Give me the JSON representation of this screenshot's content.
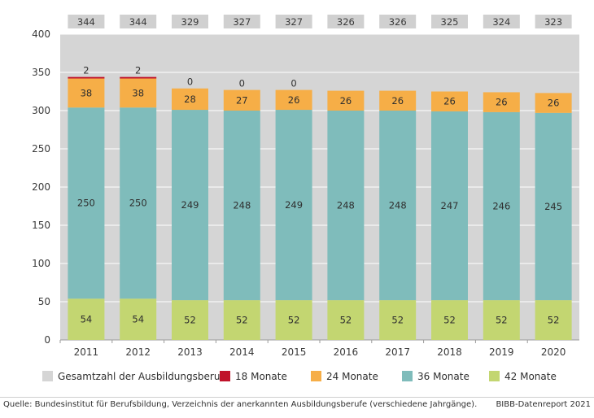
{
  "chart_data": {
    "type": "stacked-bar",
    "title": "",
    "xlabel": "",
    "ylabel": "",
    "ylim": [
      0,
      400
    ],
    "yticks": [
      0,
      50,
      100,
      150,
      200,
      250,
      300,
      350,
      400
    ],
    "categories": [
      "2011",
      "2012",
      "2013",
      "2014",
      "2015",
      "2016",
      "2017",
      "2018",
      "2019",
      "2020"
    ],
    "totals": {
      "name": "Gesamtzahl der Ausbildungsberufe",
      "color": "#d5d5d5",
      "values": [
        344,
        344,
        329,
        327,
        327,
        326,
        326,
        325,
        324,
        323
      ]
    },
    "series": [
      {
        "name": "42 Monate",
        "color": "#c3d671",
        "values": [
          54,
          54,
          52,
          52,
          52,
          52,
          52,
          52,
          52,
          52
        ]
      },
      {
        "name": "36 Monate",
        "color": "#7fbcbb",
        "values": [
          250,
          250,
          249,
          248,
          249,
          248,
          248,
          247,
          246,
          245
        ]
      },
      {
        "name": "24 Monate",
        "color": "#f6ae47",
        "values": [
          38,
          38,
          28,
          27,
          26,
          26,
          26,
          26,
          26,
          26
        ]
      },
      {
        "name": "18 Monate",
        "color": "#c0122a",
        "values": [
          2,
          2,
          0,
          0,
          0,
          null,
          null,
          null,
          null,
          null
        ]
      }
    ],
    "legend": [
      {
        "name": "Gesamtzahl der Ausbildungsberufe",
        "color": "#d5d5d5"
      },
      {
        "name": "18 Monate",
        "color": "#c0122a"
      },
      {
        "name": "24 Monate",
        "color": "#f6ae47"
      },
      {
        "name": "36 Monate",
        "color": "#7fbcbb"
      },
      {
        "name": "42 Monate",
        "color": "#c3d671"
      }
    ],
    "legend_position": "bottom"
  },
  "footer": {
    "source": "Quelle: Bundesinstitut für Berufsbildung, Verzeichnis der anerkannten Ausbildungsberufe (verschiedene Jahrgänge).",
    "credit": "BIBB-Datenreport 2021"
  }
}
